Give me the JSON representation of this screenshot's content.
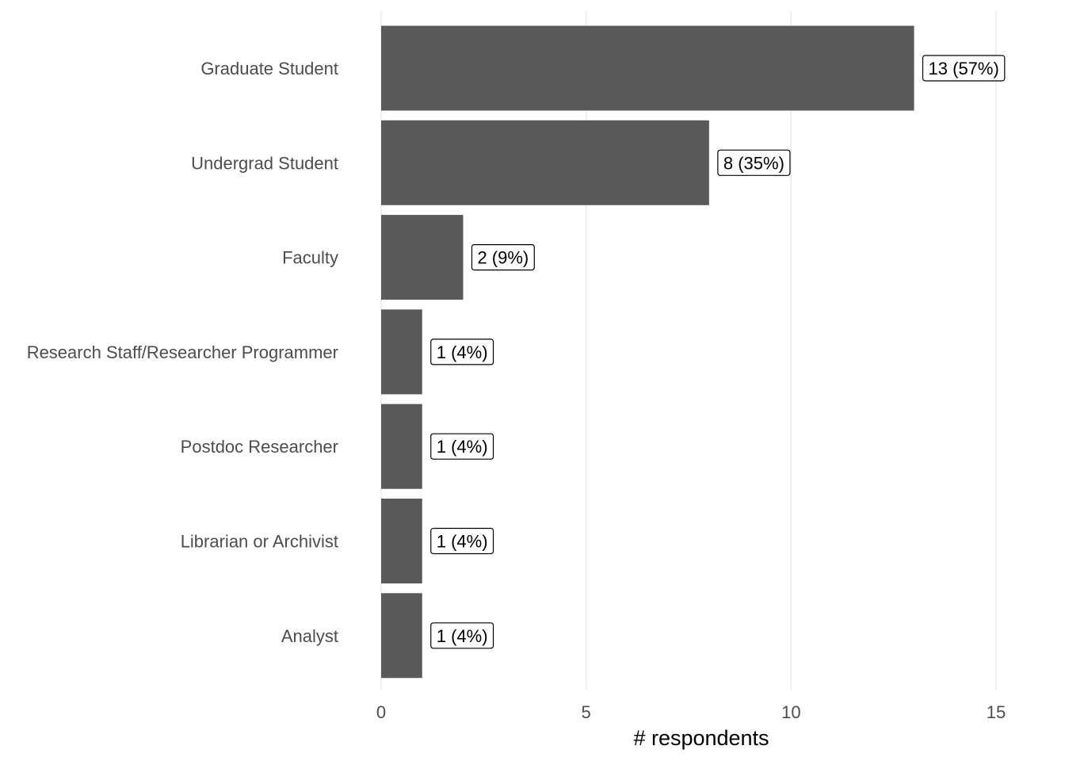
{
  "chart_data": {
    "type": "bar",
    "orientation": "horizontal",
    "categories": [
      "Graduate Student",
      "Undergrad Student",
      "Faculty",
      "Research Staff/Researcher Programmer",
      "Postdoc Researcher",
      "Librarian or Archivist",
      "Analyst"
    ],
    "values": [
      13,
      8,
      2,
      1,
      1,
      1,
      1
    ],
    "data_labels": [
      "13 (57%)",
      "8 (35%)",
      "2 (9%)",
      "1 (4%)",
      "1 (4%)",
      "1 (4%)",
      "1 (4%)"
    ],
    "xlabel": "# respondents",
    "ylabel": "",
    "title": "",
    "xlim": [
      0,
      15
    ],
    "x_ticks": [
      0,
      5,
      10,
      15
    ],
    "x_tick_labels": [
      "0",
      "5",
      "10",
      "15"
    ],
    "bar_color": "#595959",
    "grid": "vertical major gridlines",
    "legend": "none"
  }
}
